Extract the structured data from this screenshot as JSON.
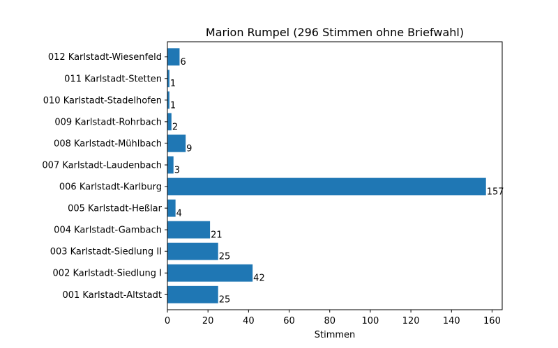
{
  "chart_data": {
    "type": "bar",
    "orientation": "horizontal",
    "title": "Marion Rumpel (296 Stimmen ohne Briefwahl)",
    "xlabel": "Stimmen",
    "ylabel": "",
    "xlim": [
      0,
      165
    ],
    "xticks": [
      "0",
      "20",
      "40",
      "60",
      "80",
      "100",
      "120",
      "140",
      "160"
    ],
    "categories": [
      "001 Karlstadt-Altstadt",
      "002 Karlstadt-Siedlung I",
      "003 Karlstadt-Siedlung II",
      "004 Karlstadt-Gambach",
      "005 Karlstadt-Heßlar",
      "006 Karlstadt-Karlburg",
      "007 Karlstadt-Laudenbach",
      "008 Karlstadt-Mühlbach",
      "009 Karlstadt-Rohrbach",
      "010 Karlstadt-Stadelhofen",
      "011 Karlstadt-Stetten",
      "012 Karlstadt-Wiesenfeld"
    ],
    "values": [
      25,
      42,
      25,
      21,
      4,
      157,
      3,
      9,
      2,
      1,
      1,
      6
    ],
    "data_labels": [
      "25",
      "42",
      "25",
      "21",
      "4",
      "157",
      "3",
      "9",
      "2",
      "1",
      "1",
      "6"
    ],
    "bar_color": "#1f77b4",
    "grid": false,
    "legend": "none"
  }
}
